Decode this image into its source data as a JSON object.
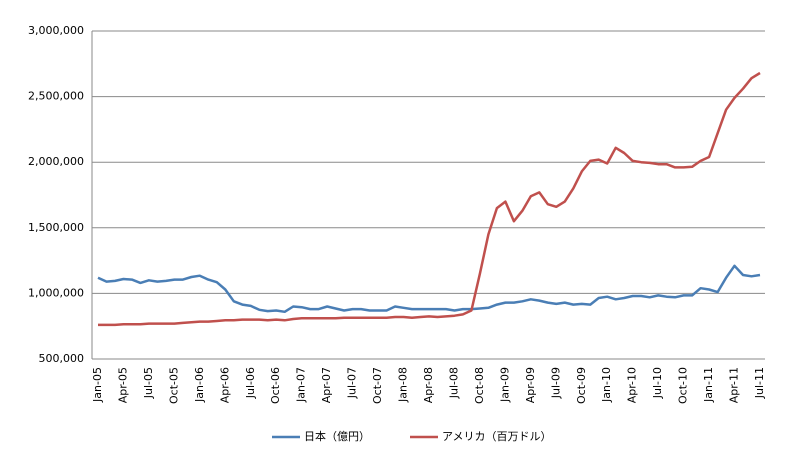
{
  "chart_data": {
    "type": "line",
    "categories": [
      "Jan-05",
      null,
      null,
      "Apr-05",
      null,
      null,
      "Jul-05",
      null,
      null,
      "Oct-05",
      null,
      null,
      "Jan-06",
      null,
      null,
      "Apr-06",
      null,
      null,
      "Jul-06",
      null,
      null,
      "Oct-06",
      null,
      null,
      "Jan-07",
      null,
      null,
      "Apr-07",
      null,
      null,
      "Jul-07",
      null,
      null,
      "Oct-07",
      null,
      null,
      "Jan-08",
      null,
      null,
      "Apr-08",
      null,
      null,
      "Jul-08",
      null,
      null,
      "Oct-08",
      null,
      null,
      "Jan-09",
      null,
      null,
      "Apr-09",
      null,
      null,
      "Jul-09",
      null,
      null,
      "Oct-09",
      null,
      null,
      "Jan-10",
      null,
      null,
      "Apr-10",
      null,
      null,
      "Jul-10",
      null,
      null,
      "Oct-10",
      null,
      null,
      "Jan-11",
      null,
      null,
      "Apr-11",
      null,
      null,
      "Jul-11"
    ],
    "series": [
      {
        "name": "日本（億円）",
        "color": "#4a7eb5",
        "values": [
          1120000,
          1090000,
          1095000,
          1110000,
          1105000,
          1080000,
          1100000,
          1090000,
          1095000,
          1105000,
          1105000,
          1125000,
          1135000,
          1105000,
          1085000,
          1030000,
          940000,
          915000,
          905000,
          875000,
          865000,
          870000,
          860000,
          900000,
          895000,
          880000,
          880000,
          900000,
          885000,
          870000,
          880000,
          880000,
          870000,
          870000,
          870000,
          900000,
          890000,
          880000,
          880000,
          880000,
          880000,
          880000,
          870000,
          880000,
          880000,
          885000,
          890000,
          915000,
          930000,
          930000,
          940000,
          955000,
          945000,
          930000,
          920000,
          930000,
          915000,
          920000,
          915000,
          965000,
          975000,
          955000,
          965000,
          980000,
          980000,
          970000,
          985000,
          975000,
          970000,
          985000,
          985000,
          1040000,
          1030000,
          1010000,
          1120000,
          1210000,
          1140000,
          1130000,
          1140000
        ]
      },
      {
        "name": "アメリカ（百万ドル）",
        "color": "#c0504d",
        "values": [
          760000,
          760000,
          760000,
          765000,
          765000,
          765000,
          770000,
          770000,
          770000,
          770000,
          775000,
          780000,
          785000,
          785000,
          790000,
          795000,
          795000,
          800000,
          800000,
          800000,
          795000,
          800000,
          795000,
          805000,
          810000,
          810000,
          810000,
          810000,
          810000,
          815000,
          815000,
          815000,
          815000,
          815000,
          815000,
          820000,
          820000,
          815000,
          820000,
          825000,
          820000,
          825000,
          830000,
          840000,
          870000,
          1150000,
          1450000,
          1650000,
          1700000,
          1550000,
          1630000,
          1740000,
          1770000,
          1680000,
          1660000,
          1700000,
          1800000,
          1930000,
          2010000,
          2020000,
          1990000,
          2110000,
          2070000,
          2010000,
          2000000,
          1995000,
          1985000,
          1985000,
          1960000,
          1960000,
          1965000,
          2010000,
          2040000,
          2220000,
          2400000,
          2490000,
          2560000,
          2640000,
          2680000
        ]
      }
    ],
    "ylim": [
      500000,
      3000000
    ],
    "yticks": [
      {
        "value": 500000,
        "label": "500,000"
      },
      {
        "value": 1000000,
        "label": "1,000,000"
      },
      {
        "value": 1500000,
        "label": "1,500,000"
      },
      {
        "value": 2000000,
        "label": "2,000,000"
      },
      {
        "value": 2500000,
        "label": "2,500,000"
      },
      {
        "value": 3000000,
        "label": "3,000,000"
      }
    ],
    "grid": true,
    "legend": "bottom"
  }
}
